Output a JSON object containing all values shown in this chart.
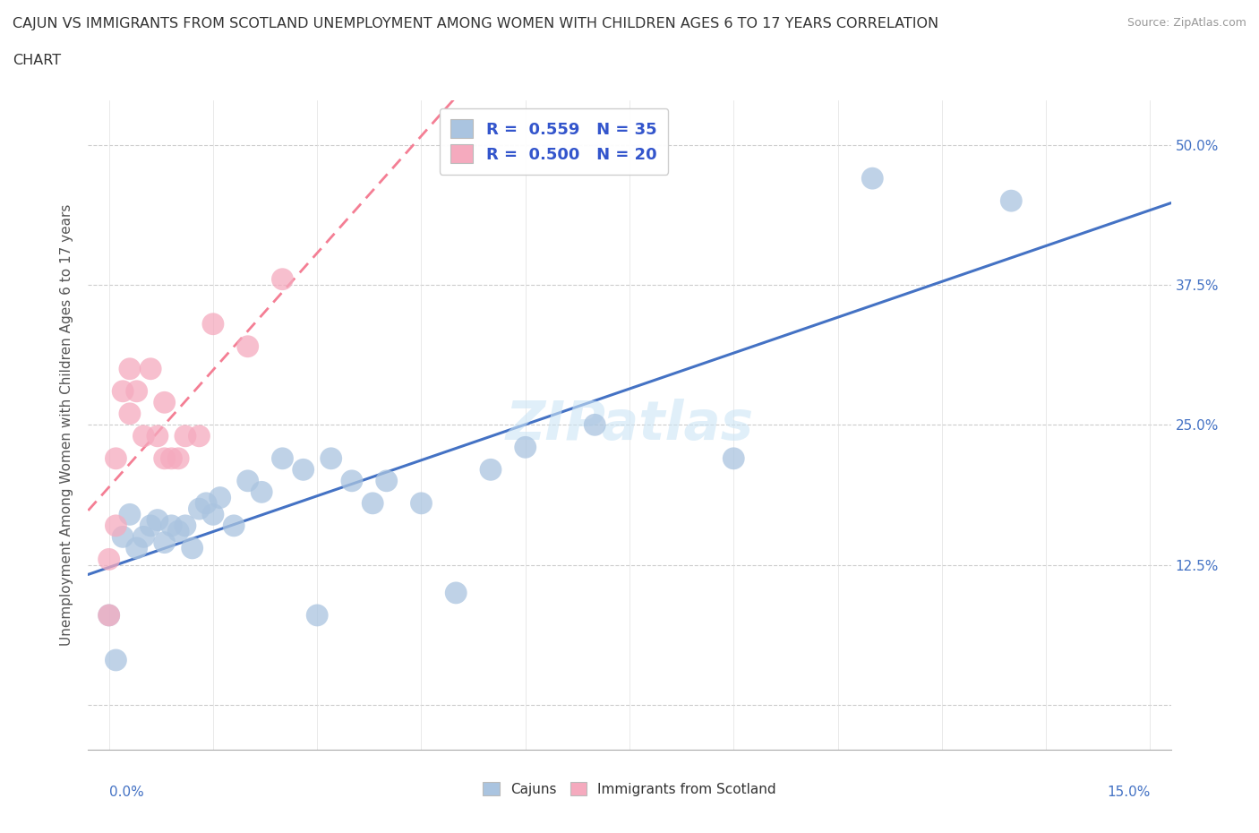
{
  "title_line1": "CAJUN VS IMMIGRANTS FROM SCOTLAND UNEMPLOYMENT AMONG WOMEN WITH CHILDREN AGES 6 TO 17 YEARS CORRELATION",
  "title_line2": "CHART",
  "source_text": "Source: ZipAtlas.com",
  "watermark": "ZIPatlas",
  "cajun_R": "0.559",
  "cajun_N": "35",
  "scotland_R": "0.500",
  "scotland_N": "20",
  "cajun_color": "#aac4e0",
  "scotland_color": "#f5aabe",
  "cajun_line_color": "#4472c4",
  "scotland_line_color": "#f47e94",
  "legend_cajun_label": "R =  0.559   N = 35",
  "legend_scotland_label": "R =  0.500   N = 20",
  "bottom_legend_cajun": "Cajuns",
  "bottom_legend_scotland": "Immigrants from Scotland",
  "ylabel": "Unemployment Among Women with Children Ages 6 to 17 years",
  "xmin": -0.003,
  "xmax": 0.153,
  "ymin": -0.04,
  "ymax": 0.54,
  "y_ticks": [
    0.0,
    0.125,
    0.25,
    0.375,
    0.5
  ],
  "y_tick_labels": [
    "",
    "12.5%",
    "25.0%",
    "37.5%",
    "50.0%"
  ],
  "cajun_x": [
    0.0,
    0.001,
    0.002,
    0.003,
    0.004,
    0.005,
    0.006,
    0.007,
    0.008,
    0.009,
    0.01,
    0.011,
    0.012,
    0.013,
    0.014,
    0.015,
    0.016,
    0.018,
    0.02,
    0.022,
    0.025,
    0.028,
    0.03,
    0.032,
    0.035,
    0.038,
    0.04,
    0.045,
    0.05,
    0.055,
    0.06,
    0.07,
    0.09,
    0.11,
    0.13
  ],
  "cajun_y": [
    0.08,
    0.04,
    0.15,
    0.17,
    0.14,
    0.15,
    0.16,
    0.165,
    0.145,
    0.16,
    0.155,
    0.16,
    0.14,
    0.175,
    0.18,
    0.17,
    0.185,
    0.16,
    0.2,
    0.19,
    0.22,
    0.21,
    0.08,
    0.22,
    0.2,
    0.18,
    0.2,
    0.18,
    0.1,
    0.21,
    0.23,
    0.25,
    0.22,
    0.47,
    0.45
  ],
  "scotland_x": [
    0.0,
    0.0,
    0.001,
    0.001,
    0.002,
    0.003,
    0.003,
    0.004,
    0.005,
    0.006,
    0.007,
    0.008,
    0.008,
    0.009,
    0.01,
    0.011,
    0.013,
    0.015,
    0.02,
    0.025
  ],
  "scotland_y": [
    0.08,
    0.13,
    0.16,
    0.22,
    0.28,
    0.26,
    0.3,
    0.28,
    0.24,
    0.3,
    0.24,
    0.22,
    0.27,
    0.22,
    0.22,
    0.24,
    0.24,
    0.34,
    0.32,
    0.38
  ]
}
